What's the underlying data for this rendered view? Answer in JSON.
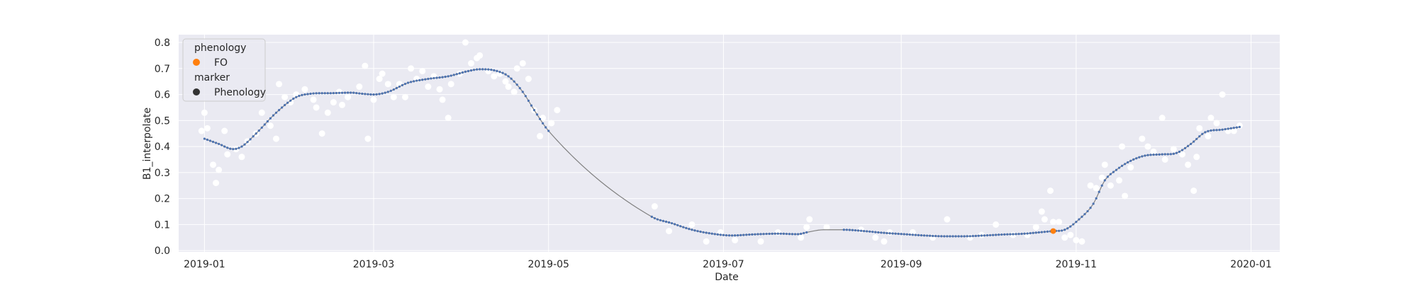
{
  "chart_data": {
    "type": "scatter",
    "xlabel": "Date",
    "ylabel": "B1_interpolate",
    "xlim": [
      "2018-12-23",
      "2020-01-11"
    ],
    "ylim": [
      -0.005,
      0.83
    ],
    "x_ticks": [
      "2019-01",
      "2019-03",
      "2019-05",
      "2019-07",
      "2019-09",
      "2019-11",
      "2020-01"
    ],
    "x_tick_dates": [
      "2019-01-01",
      "2019-03-01",
      "2019-05-01",
      "2019-07-01",
      "2019-09-01",
      "2019-11-01",
      "2020-01-01"
    ],
    "y_ticks": [
      0.0,
      0.1,
      0.2,
      0.3,
      0.4,
      0.5,
      0.6,
      0.7,
      0.8
    ],
    "y_tick_labels": [
      "0.0",
      "0.1",
      "0.2",
      "0.3",
      "0.4",
      "0.5",
      "0.6",
      "0.7",
      "0.8"
    ],
    "grid": true,
    "legend_position": "top-left",
    "colors": {
      "background": "#eaeaf2",
      "grid": "#ffffff",
      "line": "#808080",
      "curve_dots": "#4c72b0",
      "raw_points": "#ffffff",
      "phenology": "#ff7f0e",
      "marker_legend": "#333333"
    },
    "legend": {
      "hue_title": "phenology",
      "hue_entries": [
        {
          "label": "FO",
          "color": "#ff7f0e"
        }
      ],
      "style_title": "marker",
      "style_entries": [
        {
          "label": "Phenology",
          "color": "#333333"
        }
      ]
    },
    "series": [
      {
        "role": "smoothed line with daily dots",
        "points": [
          [
            "2019-01-01",
            0.43
          ],
          [
            "2019-01-06",
            0.41
          ],
          [
            "2019-01-11",
            0.39
          ],
          [
            "2019-01-14",
            0.4
          ],
          [
            "2019-01-19",
            0.45
          ],
          [
            "2019-01-26",
            0.53
          ],
          [
            "2019-02-02",
            0.59
          ],
          [
            "2019-02-07",
            0.603
          ],
          [
            "2019-02-14",
            0.605
          ],
          [
            "2019-02-21",
            0.607
          ],
          [
            "2019-02-25",
            0.603
          ],
          [
            "2019-03-01",
            0.6
          ],
          [
            "2019-03-06",
            0.61
          ],
          [
            "2019-03-13",
            0.645
          ],
          [
            "2019-03-20",
            0.66
          ],
          [
            "2019-03-27",
            0.67
          ],
          [
            "2019-04-03",
            0.69
          ],
          [
            "2019-04-07",
            0.697
          ],
          [
            "2019-04-12",
            0.693
          ],
          [
            "2019-04-17",
            0.67
          ],
          [
            "2019-04-22",
            0.61
          ],
          [
            "2019-04-26",
            0.54
          ],
          [
            "2019-05-01",
            0.46
          ],
          [
            "2019-06-06",
            0.13
          ],
          [
            "2019-06-13",
            0.105
          ],
          [
            "2019-06-20",
            0.08
          ],
          [
            "2019-06-27",
            0.065
          ],
          [
            "2019-07-04",
            0.058
          ],
          [
            "2019-07-11",
            0.062
          ],
          [
            "2019-07-20",
            0.065
          ],
          [
            "2019-07-27",
            0.063
          ],
          [
            "2019-07-30",
            0.07
          ],
          [
            "2019-08-05",
            0.08
          ],
          [
            "2019-08-12",
            0.08
          ],
          [
            "2019-08-19",
            0.075
          ],
          [
            "2019-08-26",
            0.068
          ],
          [
            "2019-09-02",
            0.063
          ],
          [
            "2019-09-09",
            0.058
          ],
          [
            "2019-09-16",
            0.055
          ],
          [
            "2019-09-23",
            0.055
          ],
          [
            "2019-09-30",
            0.058
          ],
          [
            "2019-10-07",
            0.062
          ],
          [
            "2019-10-14",
            0.065
          ],
          [
            "2019-10-21",
            0.072
          ],
          [
            "2019-10-24",
            0.075
          ],
          [
            "2019-10-28",
            0.08
          ],
          [
            "2019-11-02",
            0.12
          ],
          [
            "2019-11-07",
            0.18
          ],
          [
            "2019-11-11",
            0.27
          ],
          [
            "2019-11-15",
            0.31
          ],
          [
            "2019-11-20",
            0.345
          ],
          [
            "2019-11-25",
            0.365
          ],
          [
            "2019-12-01",
            0.37
          ],
          [
            "2019-12-06",
            0.375
          ],
          [
            "2019-12-11",
            0.41
          ],
          [
            "2019-12-16",
            0.455
          ],
          [
            "2019-12-22",
            0.465
          ],
          [
            "2019-12-28",
            0.475
          ]
        ]
      },
      {
        "role": "raw observations (white points)",
        "points": [
          [
            "2018-12-31",
            0.46
          ],
          [
            "2019-01-01",
            0.53
          ],
          [
            "2019-01-02",
            0.47
          ],
          [
            "2019-01-04",
            0.33
          ],
          [
            "2019-01-05",
            0.26
          ],
          [
            "2019-01-06",
            0.31
          ],
          [
            "2019-01-08",
            0.46
          ],
          [
            "2019-01-09",
            0.37
          ],
          [
            "2019-01-12",
            0.39
          ],
          [
            "2019-01-14",
            0.36
          ],
          [
            "2019-01-16",
            0.42
          ],
          [
            "2019-01-19",
            0.45
          ],
          [
            "2019-01-21",
            0.53
          ],
          [
            "2019-01-24",
            0.48
          ],
          [
            "2019-01-26",
            0.43
          ],
          [
            "2019-01-27",
            0.64
          ],
          [
            "2019-01-29",
            0.59
          ],
          [
            "2019-01-31",
            0.57
          ],
          [
            "2019-02-02",
            0.6
          ],
          [
            "2019-02-05",
            0.62
          ],
          [
            "2019-02-08",
            0.58
          ],
          [
            "2019-02-09",
            0.55
          ],
          [
            "2019-02-11",
            0.45
          ],
          [
            "2019-02-13",
            0.53
          ],
          [
            "2019-02-15",
            0.57
          ],
          [
            "2019-02-17",
            0.61
          ],
          [
            "2019-02-18",
            0.56
          ],
          [
            "2019-02-20",
            0.59
          ],
          [
            "2019-02-24",
            0.63
          ],
          [
            "2019-02-26",
            0.71
          ],
          [
            "2019-02-27",
            0.43
          ],
          [
            "2019-03-01",
            0.58
          ],
          [
            "2019-03-03",
            0.66
          ],
          [
            "2019-03-04",
            0.68
          ],
          [
            "2019-03-06",
            0.64
          ],
          [
            "2019-03-08",
            0.59
          ],
          [
            "2019-03-10",
            0.64
          ],
          [
            "2019-03-12",
            0.59
          ],
          [
            "2019-03-14",
            0.7
          ],
          [
            "2019-03-16",
            0.66
          ],
          [
            "2019-03-18",
            0.69
          ],
          [
            "2019-03-20",
            0.63
          ],
          [
            "2019-03-22",
            0.67
          ],
          [
            "2019-03-24",
            0.62
          ],
          [
            "2019-03-25",
            0.58
          ],
          [
            "2019-03-27",
            0.51
          ],
          [
            "2019-03-28",
            0.64
          ],
          [
            "2019-03-31",
            0.68
          ],
          [
            "2019-04-02",
            0.8
          ],
          [
            "2019-04-04",
            0.72
          ],
          [
            "2019-04-06",
            0.74
          ],
          [
            "2019-04-07",
            0.75
          ],
          [
            "2019-04-10",
            0.69
          ],
          [
            "2019-04-12",
            0.67
          ],
          [
            "2019-04-14",
            0.68
          ],
          [
            "2019-04-16",
            0.65
          ],
          [
            "2019-04-17",
            0.63
          ],
          [
            "2019-04-19",
            0.61
          ],
          [
            "2019-04-20",
            0.7
          ],
          [
            "2019-04-22",
            0.72
          ],
          [
            "2019-04-24",
            0.66
          ],
          [
            "2019-04-26",
            0.54
          ],
          [
            "2019-04-28",
            0.44
          ],
          [
            "2019-04-29",
            0.51
          ],
          [
            "2019-05-02",
            0.49
          ],
          [
            "2019-05-04",
            0.54
          ],
          [
            "2019-06-07",
            0.17
          ],
          [
            "2019-06-12",
            0.075
          ],
          [
            "2019-06-20",
            0.1
          ],
          [
            "2019-06-25",
            0.035
          ],
          [
            "2019-06-30",
            0.07
          ],
          [
            "2019-07-05",
            0.04
          ],
          [
            "2019-07-14",
            0.035
          ],
          [
            "2019-07-20",
            0.07
          ],
          [
            "2019-07-28",
            0.05
          ],
          [
            "2019-07-30",
            0.09
          ],
          [
            "2019-07-31",
            0.12
          ],
          [
            "2019-08-06",
            0.09
          ],
          [
            "2019-08-18",
            0.08
          ],
          [
            "2019-08-23",
            0.05
          ],
          [
            "2019-08-26",
            0.035
          ],
          [
            "2019-08-28",
            0.07
          ],
          [
            "2019-09-05",
            0.07
          ],
          [
            "2019-09-12",
            0.05
          ],
          [
            "2019-09-17",
            0.12
          ],
          [
            "2019-09-25",
            0.05
          ],
          [
            "2019-09-29",
            0.06
          ],
          [
            "2019-10-04",
            0.1
          ],
          [
            "2019-10-10",
            0.06
          ],
          [
            "2019-10-15",
            0.06
          ],
          [
            "2019-10-18",
            0.09
          ],
          [
            "2019-10-20",
            0.15
          ],
          [
            "2019-10-21",
            0.12
          ],
          [
            "2019-10-23",
            0.23
          ],
          [
            "2019-10-24",
            0.11
          ],
          [
            "2019-10-26",
            0.11
          ],
          [
            "2019-10-28",
            0.05
          ],
          [
            "2019-10-30",
            0.06
          ],
          [
            "2019-11-01",
            0.04
          ],
          [
            "2019-11-03",
            0.035
          ],
          [
            "2019-11-06",
            0.25
          ],
          [
            "2019-11-08",
            0.24
          ],
          [
            "2019-11-10",
            0.28
          ],
          [
            "2019-11-11",
            0.33
          ],
          [
            "2019-11-13",
            0.25
          ],
          [
            "2019-11-16",
            0.27
          ],
          [
            "2019-11-17",
            0.4
          ],
          [
            "2019-11-18",
            0.21
          ],
          [
            "2019-11-20",
            0.32
          ],
          [
            "2019-11-24",
            0.43
          ],
          [
            "2019-11-26",
            0.4
          ],
          [
            "2019-11-28",
            0.38
          ],
          [
            "2019-12-01",
            0.51
          ],
          [
            "2019-12-02",
            0.35
          ],
          [
            "2019-12-05",
            0.39
          ],
          [
            "2019-12-08",
            0.37
          ],
          [
            "2019-12-10",
            0.33
          ],
          [
            "2019-12-12",
            0.23
          ],
          [
            "2019-12-13",
            0.36
          ],
          [
            "2019-12-14",
            0.47
          ],
          [
            "2019-12-17",
            0.44
          ],
          [
            "2019-12-18",
            0.51
          ],
          [
            "2019-12-20",
            0.49
          ],
          [
            "2019-12-22",
            0.6
          ],
          [
            "2019-12-24",
            0.46
          ],
          [
            "2019-12-26",
            0.46
          ],
          [
            "2019-12-28",
            0.48
          ]
        ]
      },
      {
        "role": "phenology FO",
        "points": [
          [
            "2019-10-24",
            0.075
          ]
        ]
      }
    ]
  }
}
